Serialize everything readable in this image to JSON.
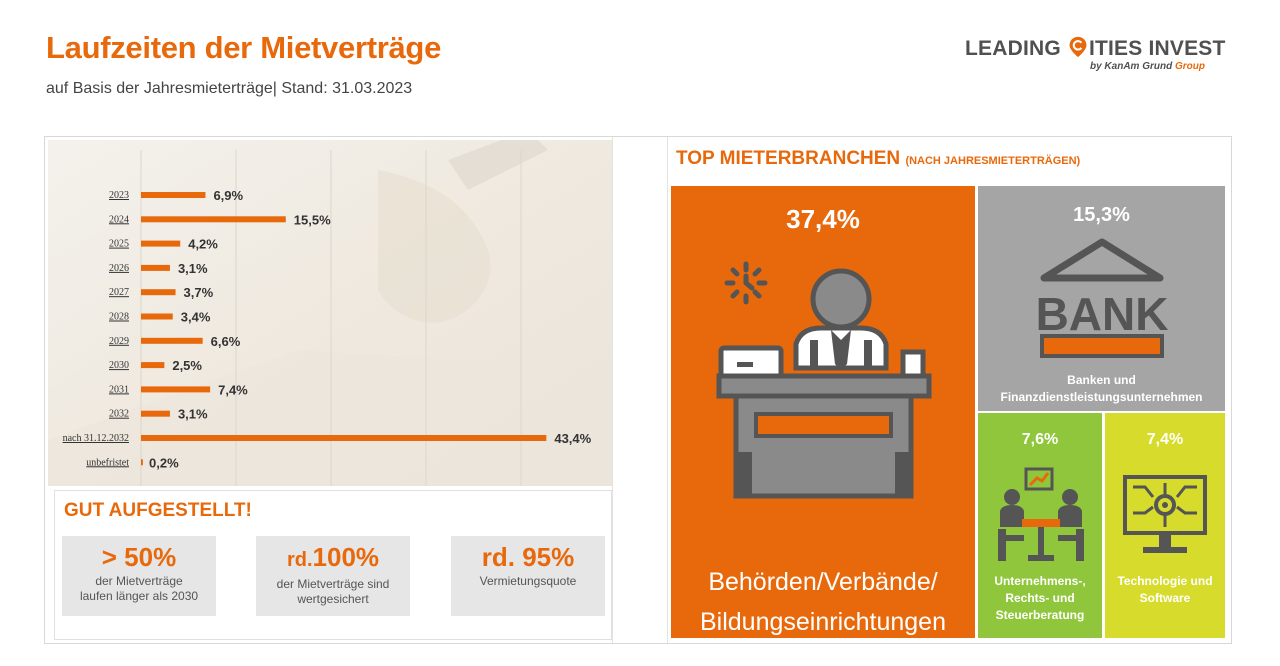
{
  "header": {
    "title": "Laufzeiten der Mietverträge",
    "subtitle": "auf Basis der Jahresmieterträge| Stand: 31.03.2023"
  },
  "logo": {
    "main_before": "LEADING ",
    "main_after": "ITIES INVEST",
    "sub_prefix": "by KanAm Grund ",
    "sub_accent": "Group"
  },
  "chart_data": {
    "type": "bar",
    "orientation": "horizontal",
    "categories": [
      "2023",
      "2024",
      "2025",
      "2026",
      "2027",
      "2028",
      "2029",
      "2030",
      "2031",
      "2032",
      "nach 31.12.2032",
      "unbefristet"
    ],
    "values": [
      6.9,
      15.5,
      4.2,
      3.1,
      3.7,
      3.4,
      6.6,
      2.5,
      7.4,
      3.1,
      43.4,
      0.2
    ],
    "labels": [
      "6,9%",
      "15,5%",
      "4,2%",
      "3,1%",
      "3,7%",
      "3,4%",
      "6,6%",
      "2,5%",
      "7,4%",
      "3,1%",
      "43,4%",
      "0,2%"
    ],
    "title": "",
    "xlabel": "",
    "ylabel": "",
    "xlim": [
      0,
      50
    ],
    "grid": true,
    "bar_color": "#e8690c"
  },
  "gut": {
    "title": "GUT AUFGESTELLT!",
    "stats": [
      {
        "big": "> 50%",
        "line1": "der Mietverträge",
        "line2": "laufen länger als 2030"
      },
      {
        "big_prefix": "rd.",
        "big": "100%",
        "line1": "der Mietverträge sind",
        "line2": "wertgesichert"
      },
      {
        "big": "rd. 95%",
        "line1": "Vermietungsquote",
        "line2": ""
      }
    ]
  },
  "top": {
    "title": "TOP MIETERBRANCHEN",
    "title_suffix": "(NACH JAHRESMIETERTRÄGEN)",
    "tiles": [
      {
        "pct": "37,4%",
        "line1": "Behörden/Verbände/",
        "line2": "Bildungseinrichtungen",
        "line3": "",
        "icon": "office-worker-icon"
      },
      {
        "pct": "15,3%",
        "line1": "Banken und",
        "line2": "Finanzdienstleistungsunternehmen",
        "line3": "",
        "icon": "bank-icon"
      },
      {
        "pct": "7,6%",
        "line1": "Unternehmens-,",
        "line2": "Rechts- und",
        "line3": "Steuerberatung",
        "icon": "meeting-icon"
      },
      {
        "pct": "7,4%",
        "line1": "Technologie und",
        "line2": "Software",
        "line3": "",
        "icon": "circuit-icon"
      }
    ],
    "colors": {
      "orange": "#e8690c",
      "grey": "#a5a5a5",
      "green": "#8fc63b",
      "yellow": "#d7dc2c"
    }
  }
}
